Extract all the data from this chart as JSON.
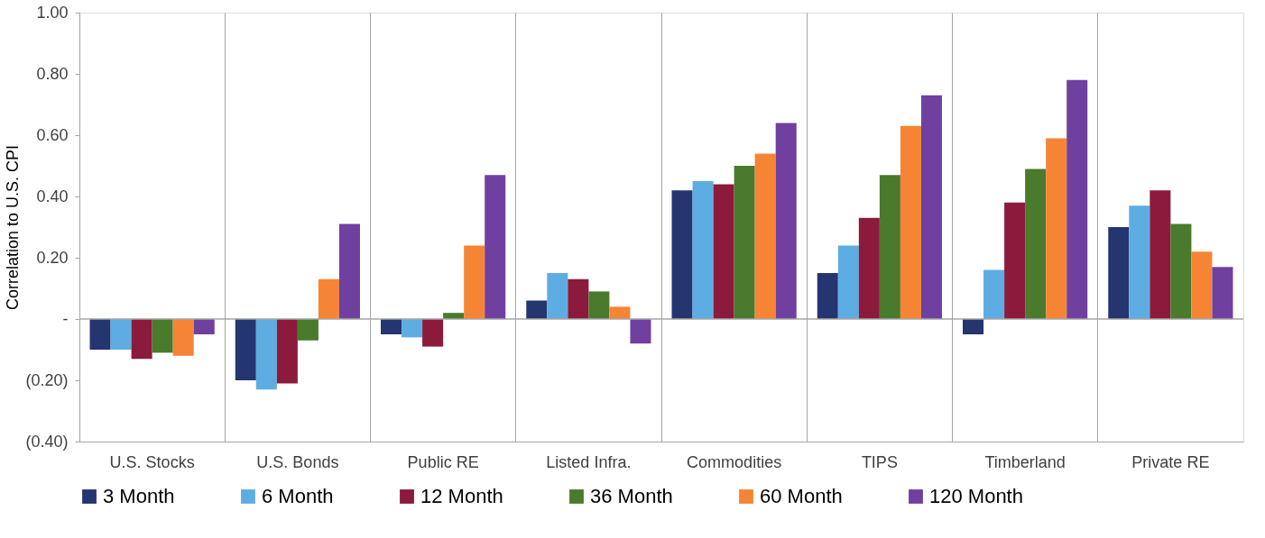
{
  "chart_data": {
    "type": "bar",
    "ylabel": "Correlation to U.S. CPI",
    "categories": [
      "U.S. Stocks",
      "U.S. Bonds",
      "Public RE",
      "Listed Infra.",
      "Commodities",
      "TIPS",
      "Timberland",
      "Private RE"
    ],
    "series": [
      {
        "name": "3 Month",
        "color": "#243570",
        "values": [
          -0.1,
          -0.2,
          -0.05,
          0.06,
          0.42,
          0.15,
          -0.05,
          0.3
        ]
      },
      {
        "name": "6 Month",
        "color": "#5dade2",
        "values": [
          -0.1,
          -0.23,
          -0.06,
          0.15,
          0.45,
          0.24,
          0.16,
          0.37
        ]
      },
      {
        "name": "12 Month",
        "color": "#8b1a3c",
        "values": [
          -0.13,
          -0.21,
          -0.09,
          0.13,
          0.44,
          0.33,
          0.38,
          0.42
        ]
      },
      {
        "name": "36 Month",
        "color": "#4a7a2c",
        "values": [
          -0.11,
          -0.07,
          0.02,
          0.09,
          0.5,
          0.47,
          0.49,
          0.31
        ]
      },
      {
        "name": "60 Month",
        "color": "#f58535",
        "values": [
          -0.12,
          0.13,
          0.24,
          0.04,
          0.54,
          0.63,
          0.59,
          0.22
        ]
      },
      {
        "name": "120 Month",
        "color": "#7040a0",
        "values": [
          -0.05,
          0.31,
          0.47,
          -0.08,
          0.64,
          0.73,
          0.78,
          0.17
        ]
      }
    ],
    "ylim": [
      -0.4,
      1.0
    ],
    "yticks": [
      {
        "value": -0.4,
        "label": "(0.40)"
      },
      {
        "value": -0.2,
        "label": "(0.20)"
      },
      {
        "value": 0,
        "label": "-"
      },
      {
        "value": 0.2,
        "label": "0.20"
      },
      {
        "value": 0.4,
        "label": "0.40"
      },
      {
        "value": 0.6,
        "label": "0.60"
      },
      {
        "value": 0.8,
        "label": "0.80"
      },
      {
        "value": 1.0,
        "label": "1.00"
      }
    ],
    "ref_lines": [
      {
        "axis": "y",
        "value": 0,
        "color": "#a6a6a6"
      }
    ],
    "grid": "x",
    "legend": "bottom"
  }
}
